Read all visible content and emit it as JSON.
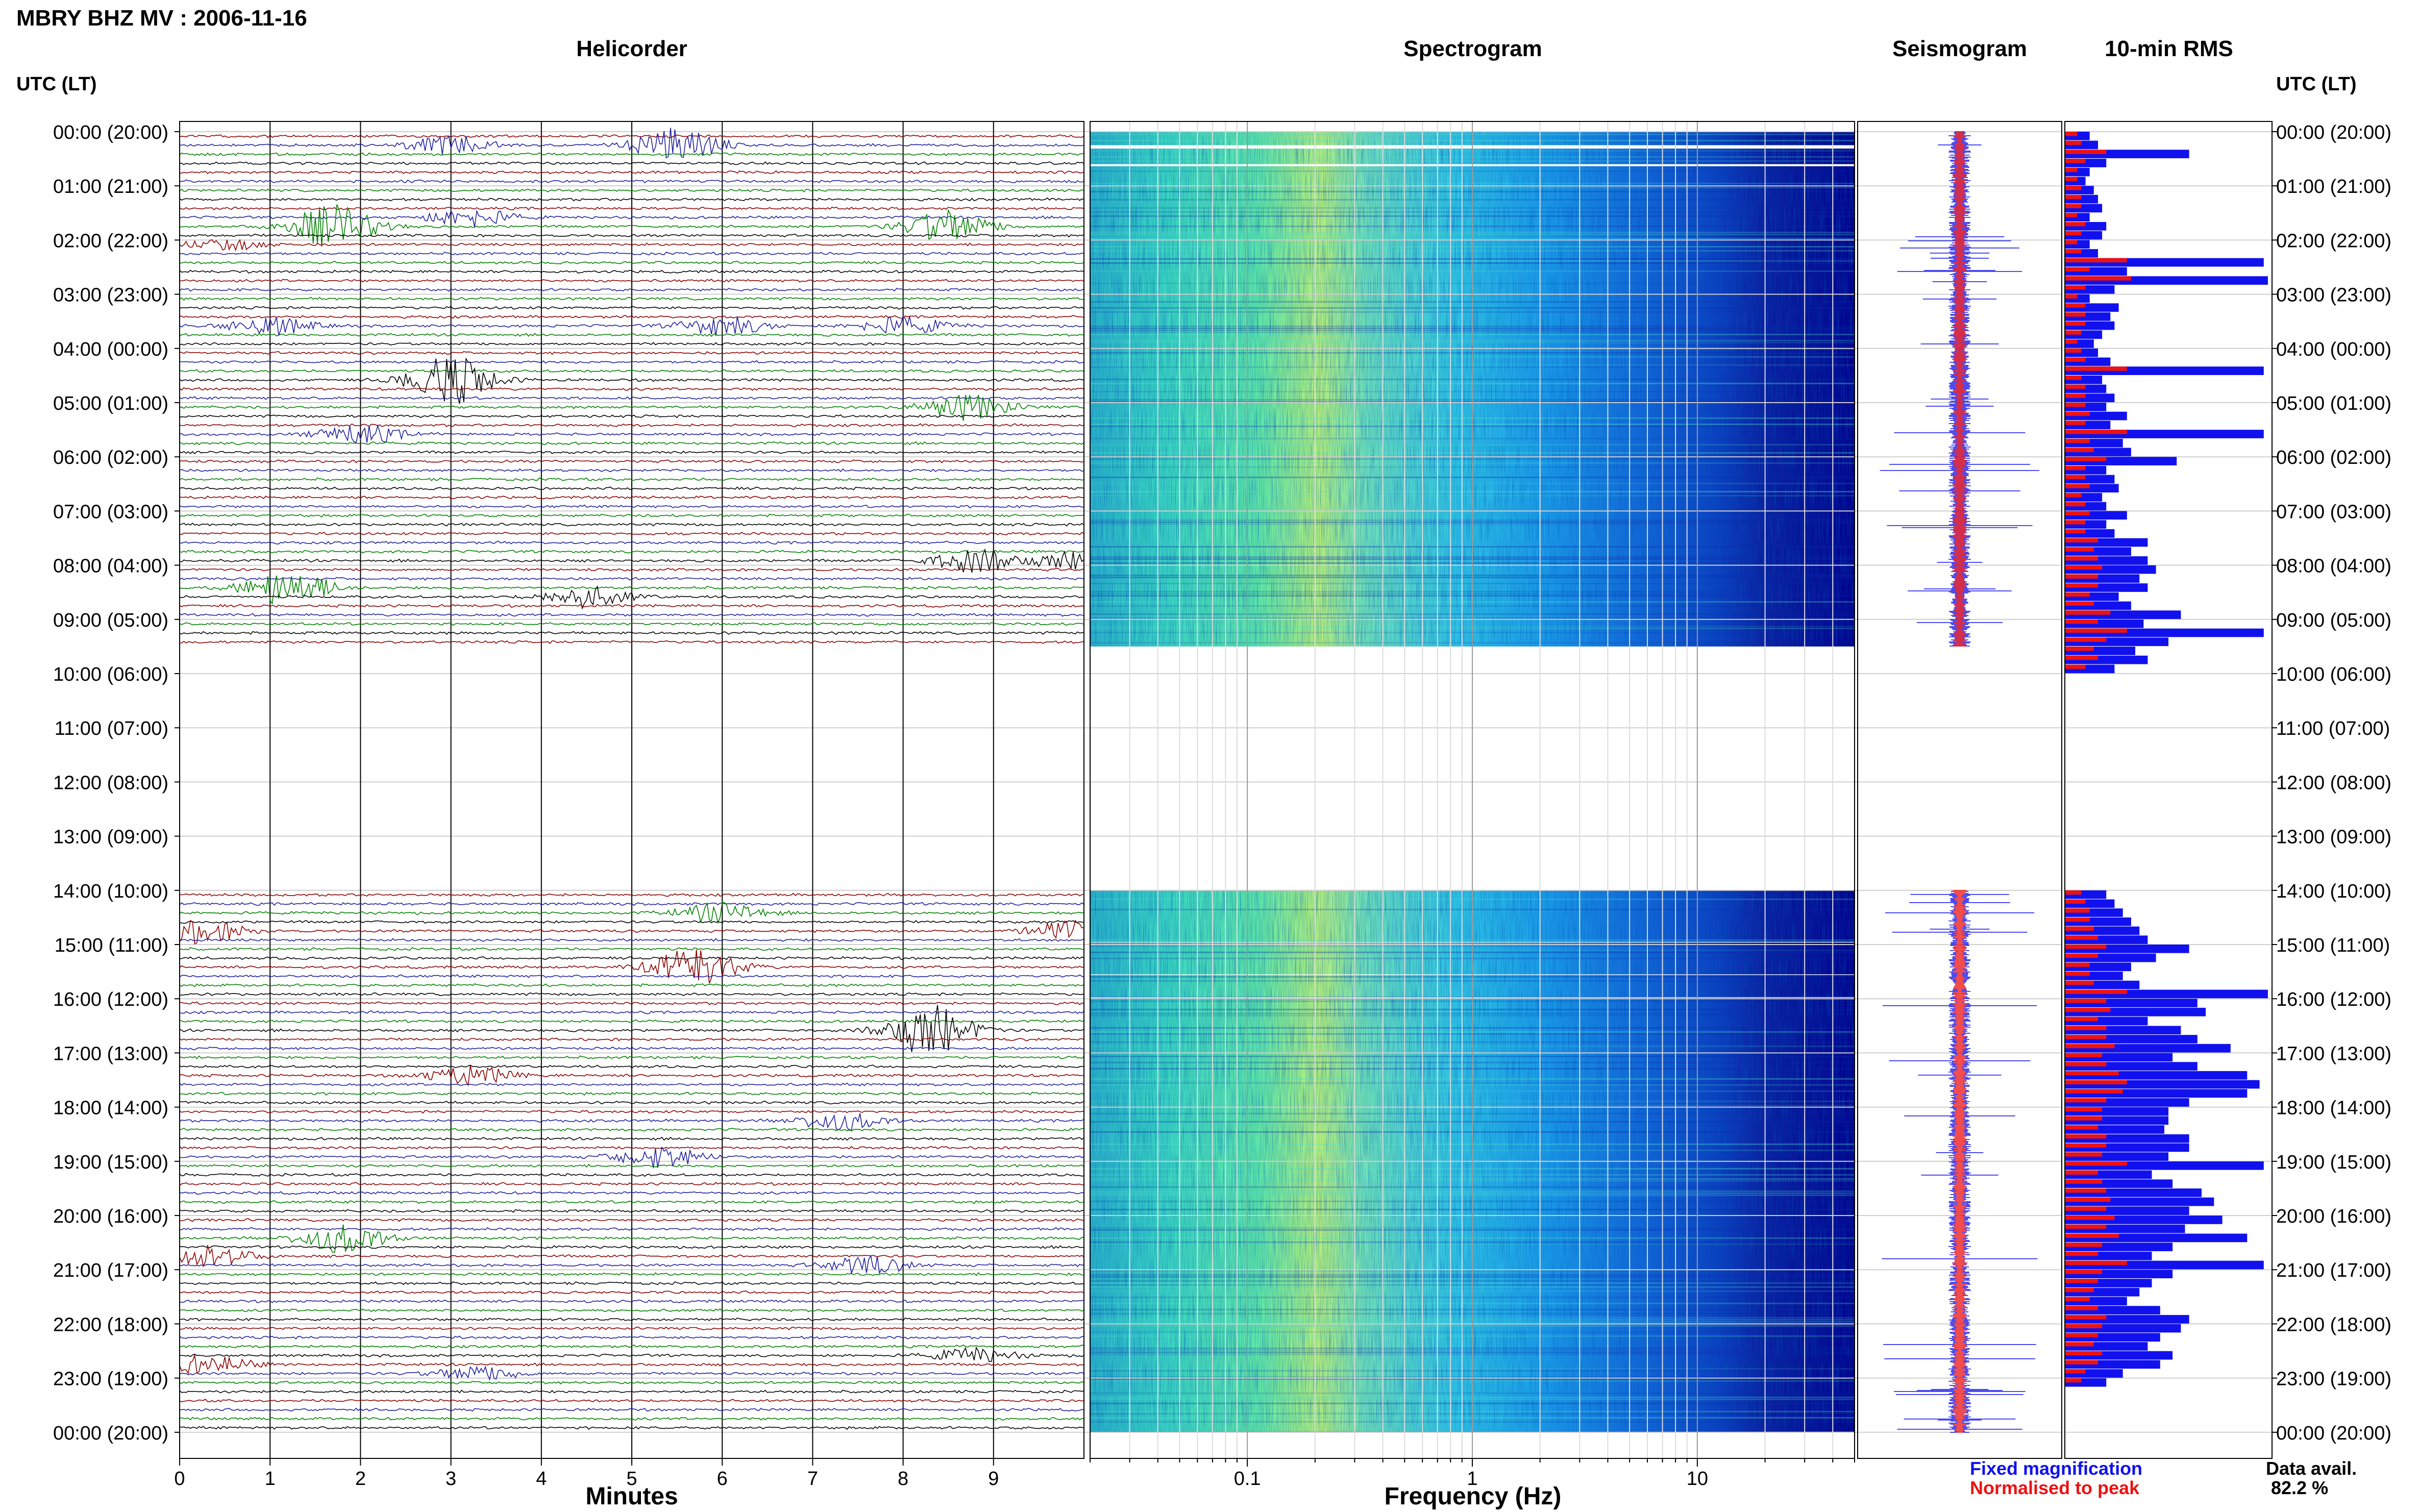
{
  "header": {
    "title": "MBRY BHZ MV : 2006-11-16"
  },
  "panels": {
    "helicorder": "Helicorder",
    "spectrogram": "Spectrogram",
    "seismogram": "Seismogram",
    "rms": "10-min RMS"
  },
  "axes": {
    "utc_label": "UTC (LT)",
    "minutes_label": "Minutes",
    "frequency_label": "Frequency (Hz)"
  },
  "legend": {
    "fixed": "Fixed magnification",
    "normalised": "Normalised to peak"
  },
  "data_availability": {
    "label": "Data avail.",
    "value": "82.2 %"
  },
  "colors": {
    "trace_cycle": [
      "#8b0000",
      "#1f1f9f",
      "#008000",
      "#000000"
    ],
    "rms_fixed": "#1111ee",
    "rms_normalised": "#ee1111",
    "spectrogram_low": "#00008b",
    "spectrogram_high": "#ffff40"
  },
  "chart_data": {
    "type": "heatmap",
    "y_ticks": [
      "00:00 (20:00)",
      "01:00 (21:00)",
      "02:00 (22:00)",
      "03:00 (23:00)",
      "04:00 (00:00)",
      "05:00 (01:00)",
      "06:00 (02:00)",
      "07:00 (03:00)",
      "08:00 (04:00)",
      "09:00 (05:00)",
      "10:00 (06:00)",
      "11:00 (07:00)",
      "12:00 (08:00)",
      "13:00 (09:00)",
      "14:00 (10:00)",
      "15:00 (11:00)",
      "16:00 (12:00)",
      "17:00 (13:00)",
      "18:00 (14:00)",
      "19:00 (15:00)",
      "20:00 (16:00)",
      "21:00 (17:00)",
      "22:00 (18:00)",
      "23:00 (19:00)",
      "00:00 (20:00)"
    ],
    "minutes_ticks": [
      "0",
      "1",
      "2",
      "3",
      "4",
      "5",
      "6",
      "7",
      "8",
      "9"
    ],
    "minutes_range": [
      0,
      10
    ],
    "frequency_ticks": [
      "0.1",
      "1",
      "10"
    ],
    "frequency_scale": "log",
    "frequency_range": [
      0.02,
      50
    ],
    "data_gap_hours": [
      9.5,
      14
    ],
    "helicorder_events": [
      {
        "hour": 0.17,
        "minute": 5.5,
        "amp": 2.4
      },
      {
        "hour": 0.17,
        "minute": 3.0,
        "amp": 1.2
      },
      {
        "hour": 1.67,
        "minute": 1.7,
        "amp": 3.0
      },
      {
        "hour": 1.67,
        "minute": 8.5,
        "amp": 2.2
      },
      {
        "hour": 1.5,
        "minute": 3.2,
        "amp": 1.3
      },
      {
        "hour": 2.0,
        "minute": 0.5,
        "amp": 0.8
      },
      {
        "hour": 3.5,
        "minute": 1.0,
        "amp": 1.3
      },
      {
        "hour": 3.5,
        "minute": 6.0,
        "amp": 1.3
      },
      {
        "hour": 3.5,
        "minute": 8.0,
        "amp": 1.2
      },
      {
        "hour": 4.5,
        "minute": 3.0,
        "amp": 3.4
      },
      {
        "hour": 5.0,
        "minute": 8.7,
        "amp": 1.8
      },
      {
        "hour": 5.5,
        "minute": 2.0,
        "amp": 1.3
      },
      {
        "hour": 7.83,
        "minute": 8.8,
        "amp": 1.6
      },
      {
        "hour": 7.83,
        "minute": 9.9,
        "amp": 1.2
      },
      {
        "hour": 8.33,
        "minute": 1.2,
        "amp": 2.5
      },
      {
        "hour": 8.5,
        "minute": 4.5,
        "amp": 1.5
      },
      {
        "hour": 14.33,
        "minute": 6.0,
        "amp": 1.4
      },
      {
        "hour": 14.67,
        "minute": 0.2,
        "amp": 1.8
      },
      {
        "hour": 14.67,
        "minute": 9.9,
        "amp": 1.5
      },
      {
        "hour": 15.33,
        "minute": 5.7,
        "amp": 2.8
      },
      {
        "hour": 16.5,
        "minute": 8.3,
        "amp": 3.6
      },
      {
        "hour": 17.33,
        "minute": 3.2,
        "amp": 1.3
      },
      {
        "hour": 18.17,
        "minute": 7.3,
        "amp": 1.3
      },
      {
        "hour": 18.83,
        "minute": 5.3,
        "amp": 1.5
      },
      {
        "hour": 20.33,
        "minute": 1.8,
        "amp": 2.0
      },
      {
        "hour": 20.67,
        "minute": 0.3,
        "amp": 1.6
      },
      {
        "hour": 20.83,
        "minute": 7.6,
        "amp": 1.2
      },
      {
        "hour": 22.67,
        "minute": 0.3,
        "amp": 1.3
      },
      {
        "hour": 22.83,
        "minute": 3.3,
        "amp": 1.0
      },
      {
        "hour": 22.5,
        "minute": 8.8,
        "amp": 1.0
      }
    ],
    "rms": {
      "start_hours": [
        0.0,
        14.0
      ],
      "step_hours": 0.1667,
      "fixed": [
        [
          0.6,
          0.8,
          3.0,
          1.0,
          0.6,
          0.5,
          0.7,
          0.8,
          0.9,
          0.6,
          1.0,
          0.9,
          0.6,
          0.8,
          4.8,
          1.5,
          4.9,
          1.2,
          0.6,
          1.3,
          1.1,
          1.2,
          0.9,
          0.7,
          0.8,
          1.1,
          4.8,
          0.9,
          1.0,
          1.2,
          1.0,
          1.5,
          1.1,
          4.8,
          1.4,
          1.6,
          2.7,
          1.0,
          1.2,
          1.3,
          0.9,
          1.0,
          1.5,
          1.0,
          1.2,
          2.0,
          1.6,
          2.0,
          2.2,
          1.8,
          2.0,
          1.3,
          1.6,
          2.8,
          1.9,
          4.8,
          2.5,
          1.7,
          2.0,
          1.2
        ],
        [
          1.0,
          1.2,
          1.4,
          1.6,
          1.8,
          2.0,
          3.0,
          2.2,
          1.6,
          1.4,
          1.8,
          4.9,
          3.2,
          3.4,
          2.0,
          2.8,
          3.2,
          4.0,
          2.6,
          3.2,
          4.4,
          4.7,
          4.4,
          3.0,
          2.5,
          2.5,
          2.4,
          3.0,
          3.0,
          2.5,
          4.8,
          2.1,
          2.6,
          3.3,
          3.6,
          3.0,
          3.8,
          2.9,
          4.4,
          2.6,
          2.1,
          4.8,
          2.6,
          2.1,
          1.8,
          1.5,
          2.3,
          3.0,
          2.8,
          2.3,
          2.0,
          2.6,
          2.3,
          1.4,
          1.0
        ]
      ],
      "normalised": [
        [
          0.3,
          0.4,
          1.0,
          0.5,
          0.3,
          0.3,
          0.4,
          0.4,
          0.4,
          0.3,
          0.5,
          0.4,
          0.3,
          0.4,
          1.5,
          0.6,
          1.6,
          0.5,
          0.3,
          0.5,
          0.5,
          0.5,
          0.4,
          0.3,
          0.4,
          0.5,
          1.5,
          0.4,
          0.5,
          0.5,
          0.5,
          0.6,
          0.5,
          1.5,
          0.6,
          0.7,
          1.0,
          0.5,
          0.5,
          0.6,
          0.4,
          0.5,
          0.6,
          0.5,
          0.5,
          0.8,
          0.7,
          0.8,
          0.9,
          0.8,
          0.8,
          0.6,
          0.7,
          1.1,
          0.8,
          1.5,
          1.0,
          0.7,
          0.8,
          0.5
        ],
        [
          0.4,
          0.5,
          0.6,
          0.6,
          0.7,
          0.8,
          1.0,
          0.8,
          0.6,
          0.6,
          0.7,
          1.5,
          1.0,
          1.1,
          0.8,
          1.0,
          1.0,
          1.2,
          0.9,
          1.0,
          1.3,
          1.5,
          1.4,
          1.0,
          0.9,
          0.9,
          0.8,
          1.0,
          1.0,
          0.9,
          1.5,
          0.8,
          0.9,
          1.0,
          1.1,
          1.0,
          1.2,
          1.0,
          1.3,
          0.9,
          0.8,
          1.5,
          0.9,
          0.8,
          0.7,
          0.6,
          0.8,
          1.0,
          0.9,
          0.8,
          0.7,
          0.9,
          0.8,
          0.5,
          0.4
        ]
      ]
    }
  }
}
